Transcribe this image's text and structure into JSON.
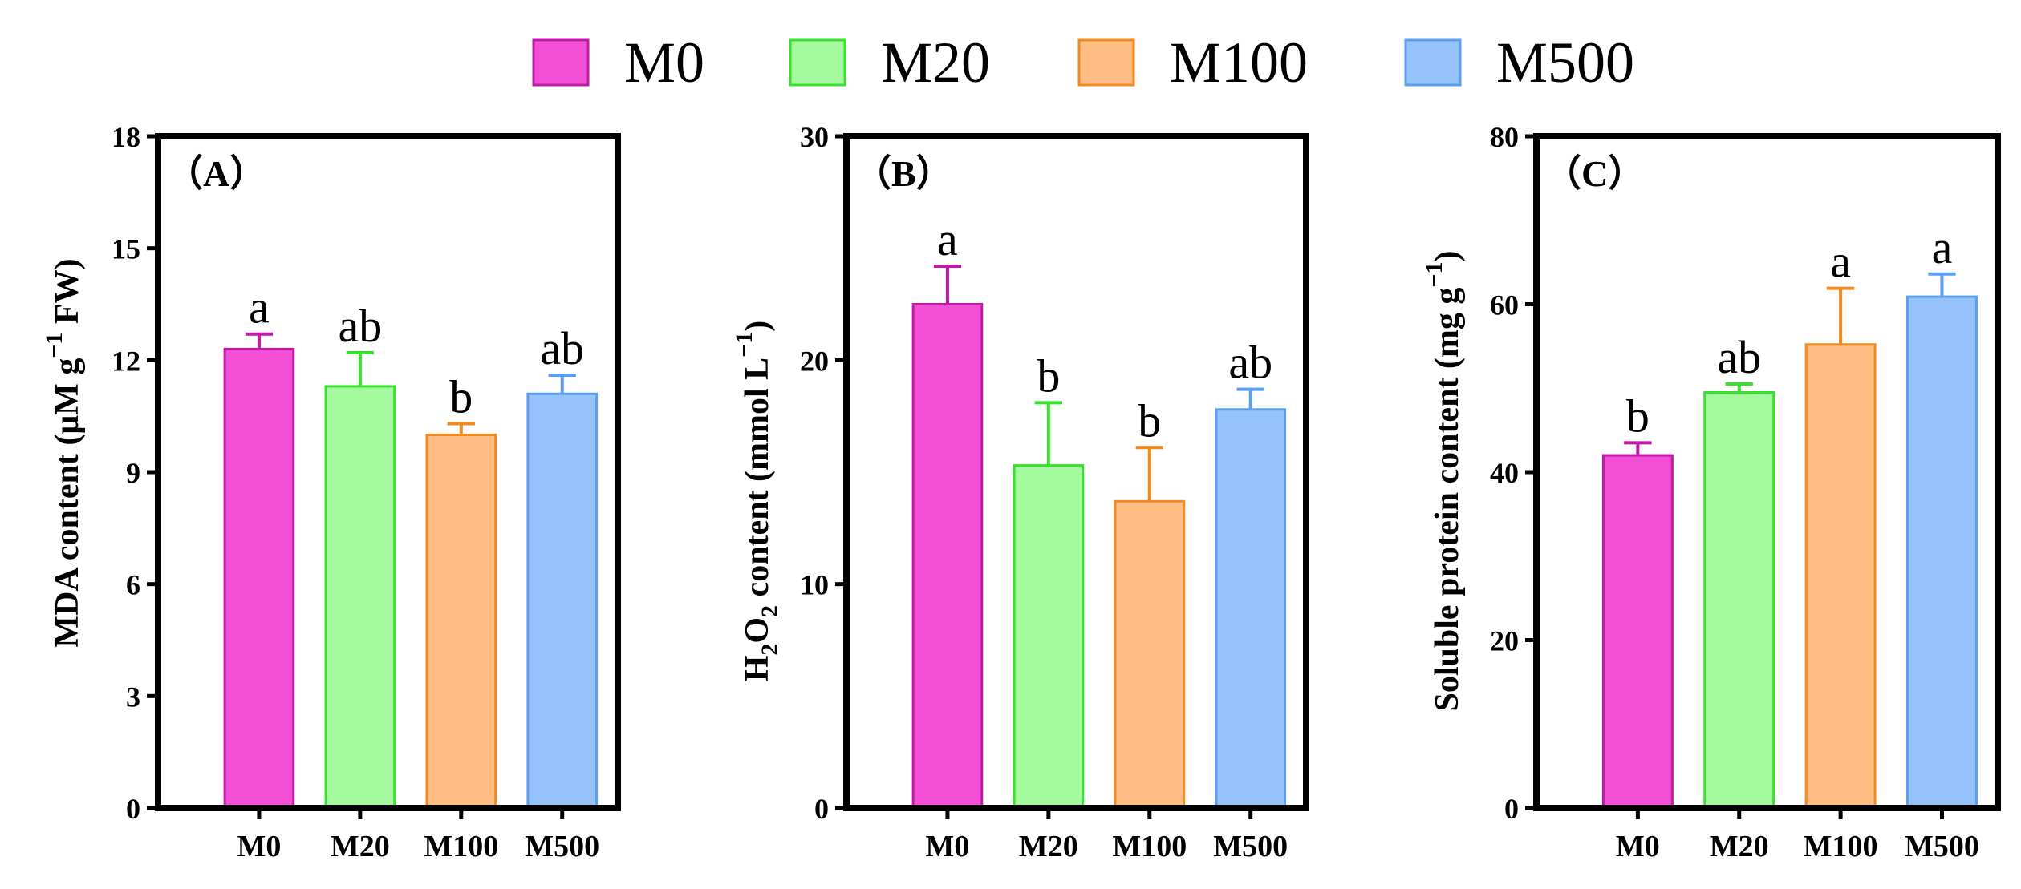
{
  "legend": [
    {
      "label": "M0",
      "fill": "#f24fd6",
      "stroke": "#c21aa8"
    },
    {
      "label": "M20",
      "fill": "#a3fb9e",
      "stroke": "#39e02e"
    },
    {
      "label": "M100",
      "fill": "#fdbd83",
      "stroke": "#f08a21"
    },
    {
      "label": "M500",
      "fill": "#95c2fb",
      "stroke": "#5c9ef0"
    }
  ],
  "chart_data": [
    {
      "type": "bar",
      "panel_label": "（A）",
      "categories": [
        "M0",
        "M20",
        "M100",
        "M500"
      ],
      "values": [
        12.3,
        11.3,
        10.0,
        11.1
      ],
      "errors": [
        0.4,
        0.9,
        0.3,
        0.5
      ],
      "significance": [
        "a",
        "ab",
        "b",
        "ab"
      ],
      "ylabel": {
        "main": "MDA content (μM g",
        "sup": "−1",
        "tail": " FW)"
      },
      "ylim": [
        0,
        18
      ],
      "yticks": [
        0,
        3,
        6,
        9,
        12,
        15,
        18
      ]
    },
    {
      "type": "bar",
      "panel_label": "（B）",
      "categories": [
        "M0",
        "M20",
        "M100",
        "M500"
      ],
      "values": [
        22.5,
        15.3,
        13.7,
        17.8
      ],
      "errors": [
        1.7,
        2.8,
        2.4,
        0.9
      ],
      "significance": [
        "a",
        "b",
        "b",
        "ab"
      ],
      "ylabel": {
        "p1": "H",
        "s1": "2",
        "p2": "O",
        "s2": "2",
        "p3": " content (mmol L",
        "sup": "−1",
        "tail": ")"
      },
      "ylim": [
        0,
        30
      ],
      "yticks": [
        0,
        10,
        20,
        30
      ]
    },
    {
      "type": "bar",
      "panel_label": "（C）",
      "categories": [
        "M0",
        "M20",
        "M100",
        "M500"
      ],
      "values": [
        42.0,
        49.5,
        55.2,
        60.9
      ],
      "errors": [
        1.5,
        1.0,
        6.7,
        2.7
      ],
      "significance": [
        "b",
        "ab",
        "a",
        "a"
      ],
      "ylabel": {
        "main": "Soluble protein content (mg g",
        "sup": "−1",
        "tail": ")"
      },
      "ylim": [
        0,
        80
      ],
      "yticks": [
        0,
        20,
        40,
        60,
        80
      ]
    }
  ]
}
